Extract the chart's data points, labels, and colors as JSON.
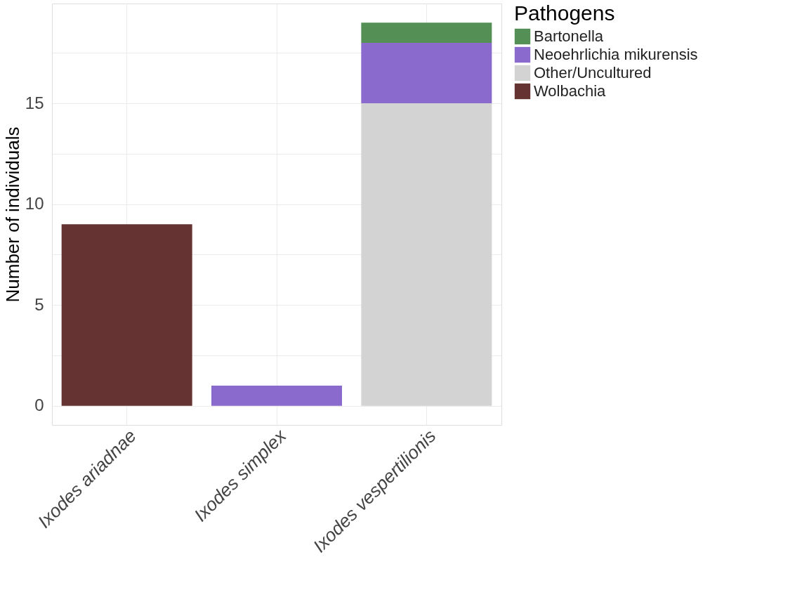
{
  "chart_data": {
    "type": "bar",
    "stacked": true,
    "ylabel": "Number of individuals",
    "legend_title": "Pathogens",
    "categories": [
      "Ixodes ariadnae",
      "Ixodes simplex",
      "Ixodes vespertilionis"
    ],
    "series": [
      {
        "name": "Wolbachia",
        "color": "#663333",
        "values": [
          9,
          null,
          null
        ]
      },
      {
        "name": "Other/Uncultured",
        "color": "#d3d3d3",
        "values": [
          null,
          null,
          15
        ]
      },
      {
        "name": "Neoehrlichia mikurensis",
        "color": "#8a6acd",
        "values": [
          null,
          1,
          3
        ]
      },
      {
        "name": "Bartonella",
        "color": "#548f56",
        "values": [
          null,
          null,
          1
        ]
      }
    ],
    "ylim": [
      -0.95,
      19.95
    ],
    "yticks": [
      0,
      {
        "value": 2.5,
        "label": null
      },
      5,
      {
        "value": 7.5,
        "label": null
      },
      10,
      {
        "value": 12.5,
        "label": null
      },
      15,
      {
        "value": 17.5,
        "label": null
      }
    ],
    "grid": true,
    "legend": "right"
  }
}
